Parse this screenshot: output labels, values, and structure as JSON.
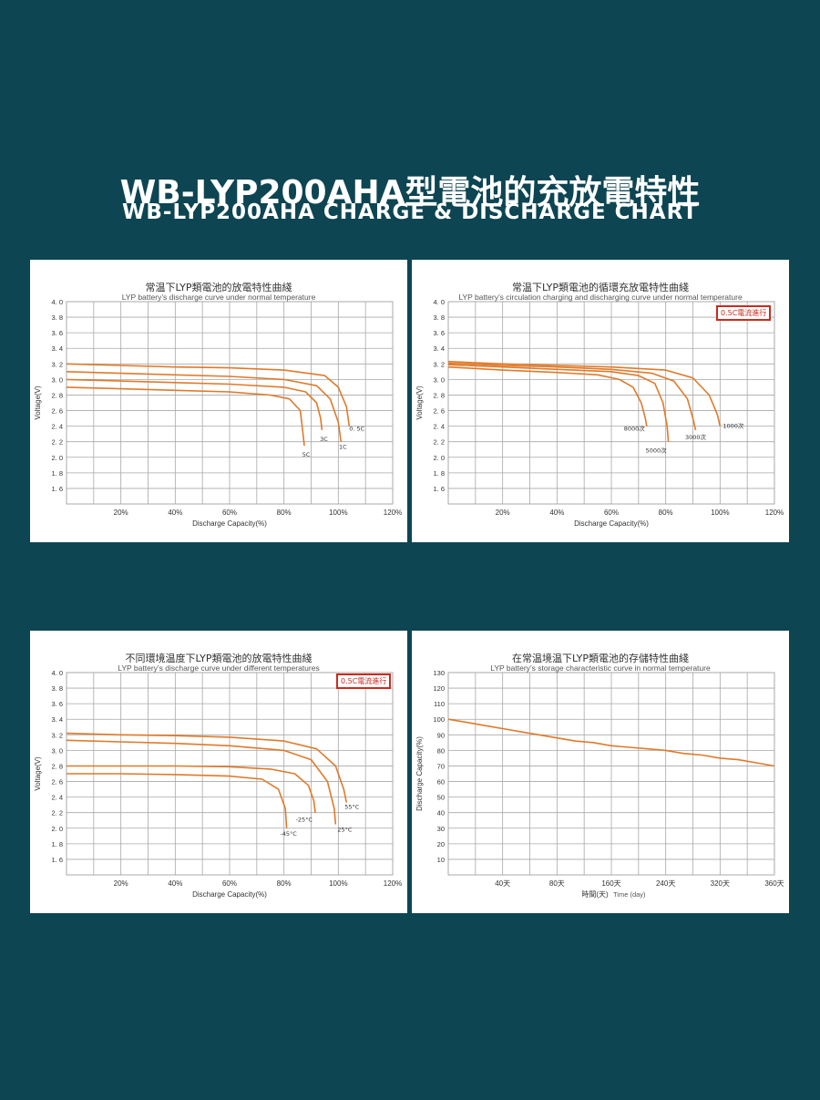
{
  "page_title": {
    "cn": "WB-LYP200AHA型電池的充放電特性",
    "en": "WB-LYP200AHA CHARGE & DISCHARGE CHART"
  },
  "colors": {
    "background": "#0d4552",
    "curve": "#e07a2a",
    "note_border": "#cc2a1e",
    "grid": "#a8a8a8"
  },
  "chart_data": [
    {
      "type": "line",
      "title": "常温下LYP類電池的放電特性曲綫",
      "subtitle": "LYP battery’s discharge curve under normal temperature",
      "xlabel": "Discharge Capacity(%)",
      "ylabel": "Voltage(V)",
      "xlim": [
        0,
        120
      ],
      "ylim": [
        1.4,
        4.0
      ],
      "x_ticks": [
        "20%",
        "40%",
        "60%",
        "80%",
        "100%",
        "120%"
      ],
      "y_ticks": [
        "1. 6",
        "1. 8",
        "2. 0",
        "2. 2",
        "2. 4",
        "2. 6",
        "2. 8",
        "3. 0",
        "3. 2",
        "3. 4",
        "3. 6",
        "3. 8",
        "4. 0"
      ],
      "grid": true,
      "series": [
        {
          "name": "0. 5C",
          "x": [
            0,
            20,
            40,
            60,
            80,
            95,
            100,
            103,
            104
          ],
          "y": [
            3.2,
            3.18,
            3.16,
            3.15,
            3.12,
            3.05,
            2.9,
            2.65,
            2.4
          ]
        },
        {
          "name": "1C",
          "x": [
            0,
            20,
            40,
            60,
            80,
            92,
            97,
            100,
            101
          ],
          "y": [
            3.1,
            3.08,
            3.06,
            3.04,
            3.0,
            2.92,
            2.75,
            2.45,
            2.2
          ]
        },
        {
          "name": "3C",
          "x": [
            0,
            20,
            40,
            60,
            80,
            88,
            92,
            93.5,
            94
          ],
          "y": [
            3.0,
            2.98,
            2.96,
            2.94,
            2.9,
            2.84,
            2.7,
            2.5,
            2.35
          ]
        },
        {
          "name": "5C",
          "x": [
            0,
            20,
            40,
            60,
            75,
            82,
            86,
            87,
            87.5
          ],
          "y": [
            2.9,
            2.88,
            2.86,
            2.84,
            2.8,
            2.75,
            2.6,
            2.3,
            2.15
          ]
        }
      ]
    },
    {
      "type": "line",
      "title": "常温下LYP類電池的循環充放電特性曲綫",
      "subtitle": "LYP battery’s circulation charging and discharging curve under normal temperature",
      "note": "0.5C電流進行",
      "xlabel": "Discharge Capacity(%)",
      "ylabel": "Voltage(V)",
      "xlim": [
        0,
        120
      ],
      "ylim": [
        1.4,
        4.0
      ],
      "x_ticks": [
        "20%",
        "40%",
        "60%",
        "80%",
        "100%",
        "120%"
      ],
      "y_ticks": [
        "1. 6",
        "1. 8",
        "2. 0",
        "2. 2",
        "2. 4",
        "2. 6",
        "2. 8",
        "3. 0",
        "3. 2",
        "3. 4",
        "3. 6",
        "3. 8",
        "4. 0"
      ],
      "grid": true,
      "series": [
        {
          "name": "1000次",
          "x": [
            0,
            20,
            40,
            60,
            80,
            90,
            96,
            99,
            100
          ],
          "y": [
            3.23,
            3.2,
            3.18,
            3.16,
            3.12,
            3.02,
            2.8,
            2.55,
            2.4
          ]
        },
        {
          "name": "3000次",
          "x": [
            0,
            20,
            40,
            60,
            75,
            83,
            88,
            90,
            91
          ],
          "y": [
            3.21,
            3.18,
            3.16,
            3.13,
            3.08,
            2.98,
            2.75,
            2.5,
            2.35
          ]
        },
        {
          "name": "5000次",
          "x": [
            0,
            20,
            40,
            60,
            70,
            76,
            79,
            80.5,
            81
          ],
          "y": [
            3.19,
            3.16,
            3.13,
            3.1,
            3.05,
            2.95,
            2.7,
            2.4,
            2.2
          ]
        },
        {
          "name": "8000次",
          "x": [
            0,
            20,
            40,
            55,
            63,
            68,
            71,
            72.5,
            73
          ],
          "y": [
            3.16,
            3.12,
            3.09,
            3.06,
            3.0,
            2.9,
            2.7,
            2.5,
            2.4
          ]
        }
      ]
    },
    {
      "type": "line",
      "title": "不同環境温度下LYP類電池的放電特性曲綫",
      "subtitle": "LYP battery’s discharge curve under different temperatures",
      "note": "0.5C電流進行",
      "xlabel": "Discharge Capacity(%)",
      "ylabel": "Voltage(V)",
      "xlim": [
        0,
        120
      ],
      "ylim": [
        1.4,
        4.0
      ],
      "x_ticks": [
        "20%",
        "40%",
        "60%",
        "80%",
        "100%",
        "120%"
      ],
      "y_ticks": [
        "1. 6",
        "1. 8",
        "2. 0",
        "2. 2",
        "2. 4",
        "2. 6",
        "2. 8",
        "3. 0",
        "3. 2",
        "3. 4",
        "3. 6",
        "3. 8",
        "4. 0"
      ],
      "grid": true,
      "series": [
        {
          "name": "55°C",
          "x": [
            0,
            20,
            40,
            60,
            80,
            92,
            99,
            102,
            103
          ],
          "y": [
            3.22,
            3.2,
            3.19,
            3.17,
            3.12,
            3.02,
            2.8,
            2.5,
            2.33
          ]
        },
        {
          "name": "25°C",
          "x": [
            0,
            20,
            40,
            60,
            80,
            90,
            96,
            98.5,
            99
          ],
          "y": [
            3.13,
            3.11,
            3.09,
            3.06,
            3.0,
            2.88,
            2.6,
            2.25,
            2.05
          ]
        },
        {
          "name": "-25°C",
          "x": [
            0,
            20,
            40,
            60,
            75,
            84,
            89,
            91,
            91.5
          ],
          "y": [
            2.8,
            2.8,
            2.8,
            2.79,
            2.76,
            2.7,
            2.55,
            2.35,
            2.2
          ]
        },
        {
          "name": "-45°C",
          "x": [
            0,
            10,
            20,
            40,
            60,
            72,
            78,
            80.5,
            81
          ],
          "y": [
            2.7,
            2.7,
            2.7,
            2.69,
            2.67,
            2.63,
            2.5,
            2.25,
            2.0
          ]
        }
      ]
    },
    {
      "type": "line",
      "title": "在常温境温下LYP類電池的存儲特性曲綫",
      "subtitle": "LYP battery’s storage characteristic curve in normal temperature",
      "xlabel": "時間(天)",
      "xlabel_en": "Time (day)",
      "ylabel": "Discharge Capacity(%)",
      "xlim": [
        0,
        360
      ],
      "ylim": [
        0,
        130
      ],
      "x_ticks": [
        "40天",
        "80天",
        "160天",
        "240天",
        "320天",
        "360天"
      ],
      "y_ticks": [
        "10",
        "20",
        "30",
        "40",
        "50",
        "60",
        "70",
        "80",
        "90",
        "100",
        "110",
        "120",
        "130"
      ],
      "grid": true,
      "series": [
        {
          "x": [
            0,
            20,
            40,
            60,
            80,
            100,
            120,
            140,
            160,
            180,
            200,
            220,
            240,
            260,
            280,
            300,
            320,
            340,
            360
          ],
          "y": [
            100,
            98,
            96,
            94,
            92,
            90,
            88,
            86,
            85,
            83,
            82,
            81,
            80,
            78,
            77,
            75,
            74,
            72,
            70
          ]
        }
      ]
    }
  ]
}
